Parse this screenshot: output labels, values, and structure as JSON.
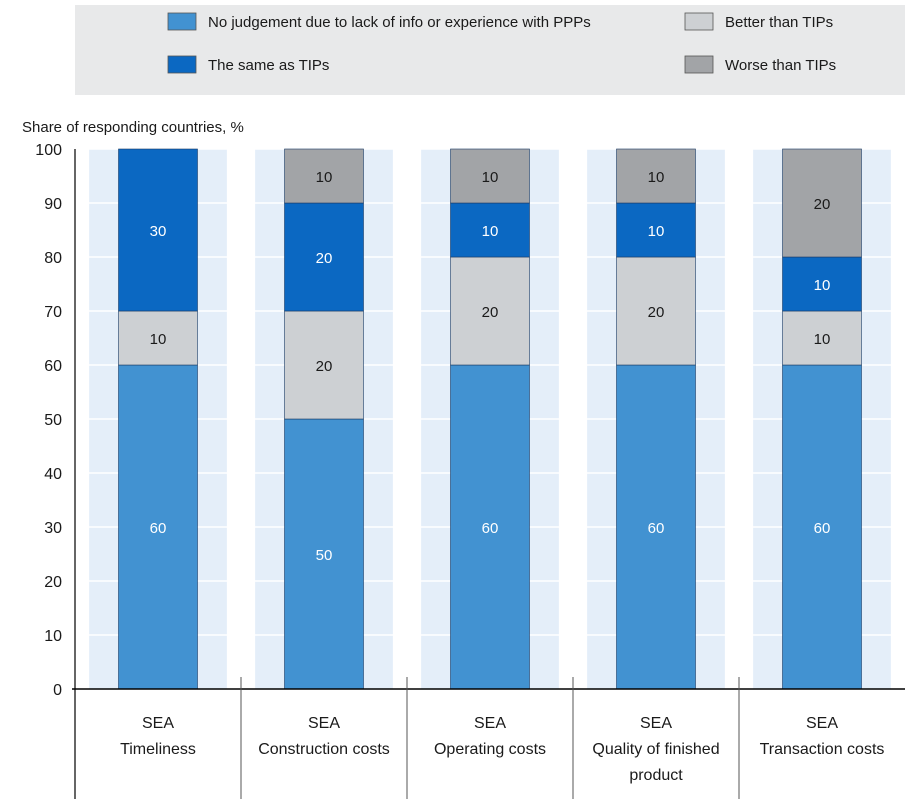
{
  "colors": {
    "no_judgement": "#4292d1",
    "same": "#0b68c2",
    "better": "#cdd0d3",
    "worse": "#a2a4a7",
    "legend_bg": "#e8e9ea",
    "band": "#e4eef9",
    "grid": "#ffffff",
    "axis": "#000000"
  },
  "chart_data": {
    "type": "bar",
    "stacked": true,
    "ylabel": "Share of responding countries, %",
    "ylim": [
      0,
      100
    ],
    "yticks": [
      0,
      10,
      20,
      30,
      40,
      50,
      60,
      70,
      80,
      90,
      100
    ],
    "legend_position": "top",
    "categories": [
      [
        "SEA",
        "Timeliness"
      ],
      [
        "SEA",
        "Construction costs"
      ],
      [
        "SEA",
        "Operating costs"
      ],
      [
        "SEA",
        "Quality of finished",
        "product"
      ],
      [
        "SEA",
        "Transaction costs"
      ]
    ],
    "series": [
      {
        "key": "no_judgement",
        "name": "No judgement due to lack of info or experience with PPPs",
        "values": [
          60,
          50,
          60,
          60,
          60
        ]
      },
      {
        "key": "better",
        "name": "Better than TIPs",
        "values": [
          10,
          20,
          20,
          20,
          10
        ]
      },
      {
        "key": "same",
        "name": "The same as TIPs",
        "values": [
          30,
          20,
          10,
          10,
          10
        ]
      },
      {
        "key": "worse",
        "name": "Worse than TIPs",
        "values": [
          0,
          10,
          10,
          10,
          20
        ]
      }
    ],
    "legend_order": [
      "no_judgement",
      "better",
      "same",
      "worse"
    ]
  }
}
